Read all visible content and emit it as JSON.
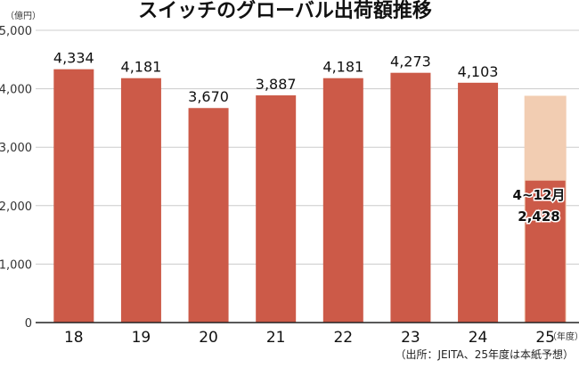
{
  "chart_data": {
    "type": "bar",
    "title": "スイッチのグローバル出荷額推移",
    "y_unit": "（億円）",
    "x_unit": "（年度）",
    "source": "（出所：JEITA、25年度は本紙予想）",
    "categories": [
      "18",
      "19",
      "20",
      "21",
      "22",
      "23",
      "24",
      "25"
    ],
    "values": [
      4334,
      4181,
      3670,
      3887,
      4181,
      4273,
      4103,
      2428
    ],
    "value_labels": [
      "4,334",
      "4,181",
      "3,670",
      "3,887",
      "4,181",
      "4,273",
      "4,103",
      ""
    ],
    "forecast": {
      "category": "25",
      "total": 3880,
      "actual": 2428,
      "period_label": "4~12月",
      "actual_label": "2,428"
    },
    "y_ticks": [
      0,
      1000,
      2000,
      3000,
      4000,
      5000
    ],
    "y_tick_labels": [
      "0",
      "1,000",
      "2,000",
      "3,000",
      "4,000",
      "5,000"
    ],
    "ylim": [
      0,
      5000
    ],
    "grid": true,
    "colors": {
      "bar": "#cc5a48",
      "forecast": "#f2cdb2",
      "grid": "#cccccc"
    }
  }
}
